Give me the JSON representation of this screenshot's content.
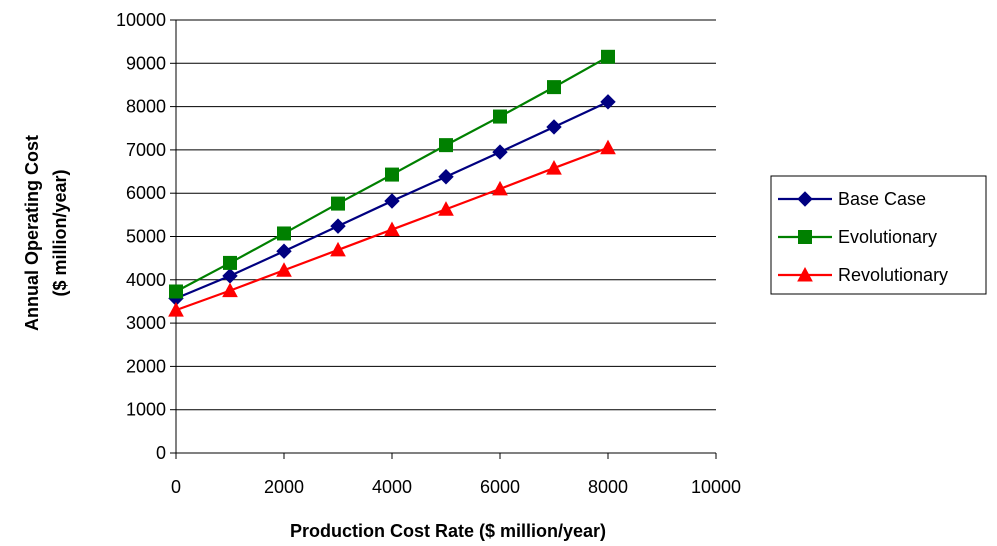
{
  "chart_data": {
    "type": "line",
    "title": "",
    "xlabel": "Production Cost Rate ($ million/year)",
    "ylabel_line1": "Annual Operating Cost",
    "ylabel_line2": "($ million/year)",
    "xlim": [
      0,
      10000
    ],
    "ylim": [
      0,
      10000
    ],
    "x_ticks": [
      0,
      2000,
      4000,
      6000,
      8000,
      10000
    ],
    "y_ticks": [
      0,
      1000,
      2000,
      3000,
      4000,
      5000,
      6000,
      7000,
      8000,
      9000,
      10000
    ],
    "grid": "horizontal",
    "legend_position": "right",
    "x": [
      0,
      1000,
      2000,
      3000,
      4000,
      5000,
      6000,
      7000,
      8000
    ],
    "series": [
      {
        "name": "Base Case",
        "color": "#000080",
        "marker": "diamond",
        "values": [
          3570,
          4090,
          4660,
          5240,
          5820,
          6380,
          6950,
          7530,
          8110
        ]
      },
      {
        "name": "Evolutionary",
        "color": "#008000",
        "marker": "square",
        "values": [
          3730,
          4390,
          5070,
          5760,
          6430,
          7110,
          7770,
          8450,
          9150
        ]
      },
      {
        "name": "Revolutionary",
        "color": "#FF0000",
        "marker": "triangle",
        "values": [
          3300,
          3750,
          4220,
          4690,
          5160,
          5630,
          6100,
          6580,
          7050
        ]
      }
    ]
  }
}
